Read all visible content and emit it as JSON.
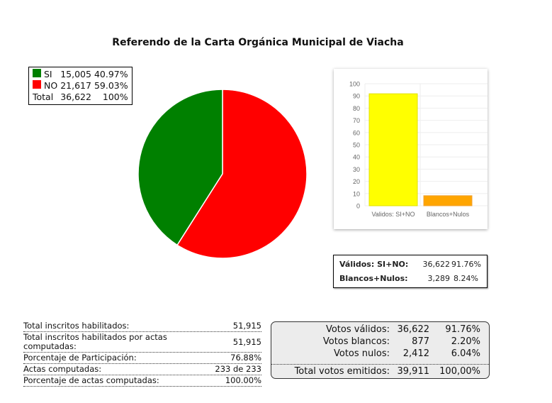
{
  "title": "Referendo de la Carta Orgánica Municipal de Viacha",
  "chart_data": [
    {
      "type": "pie",
      "series": [
        {
          "name": "SI",
          "value": 15005,
          "percent": "40.97%",
          "color": "#008000"
        },
        {
          "name": "NO",
          "value": 21617,
          "percent": "59.03%",
          "color": "#ff0000"
        }
      ],
      "legend": {
        "placement": "top-left",
        "rows": [
          {
            "label": "SI",
            "value": "15,005",
            "percent": "40.97%",
            "color": "#008000"
          },
          {
            "label": "NO",
            "value": "21,617",
            "percent": "59.03%",
            "color": "#ff0000"
          },
          {
            "label": "Total",
            "value": "36,622",
            "percent": "100%"
          }
        ]
      }
    },
    {
      "type": "bar",
      "categories": [
        "Validos: SI+NO",
        "Blancos+Nulos"
      ],
      "values": [
        91.76,
        8.24
      ],
      "colors": [
        "#ffff00",
        "#ffa500"
      ],
      "ylim": [
        0,
        100
      ],
      "yticks": [
        0,
        10,
        20,
        30,
        40,
        50,
        60,
        70,
        80,
        90,
        100
      ],
      "grid": true
    }
  ],
  "valid_box": [
    {
      "label": "Válidos: SI+NO:",
      "value": "36,622",
      "percent": "91.76%"
    },
    {
      "label": "Blancos+Nulos:",
      "value": "3,289",
      "percent": "8.24%"
    }
  ],
  "stats": [
    {
      "label": "Total inscritos habilitados:",
      "value": "51,915"
    },
    {
      "label": "Total inscritos habilitados por actas computadas:",
      "value": "51,915"
    },
    {
      "label": "Porcentaje de Participación:",
      "value": "76.88%"
    },
    {
      "label": "Actas computadas:",
      "value": "233 de 233"
    },
    {
      "label": "Porcentaje de actas computadas:",
      "value": "100.00%"
    }
  ],
  "votes": [
    {
      "label": "Votos válidos:",
      "value": "36,622",
      "percent": "91.76%"
    },
    {
      "label": "Votos blancos:",
      "value": "877",
      "percent": "2.20%"
    },
    {
      "label": "Votos nulos:",
      "value": "2,412",
      "percent": "6.04%"
    }
  ],
  "votes_total": {
    "label": "Total votos emitidos:",
    "value": "39,911",
    "percent": "100,00%"
  }
}
